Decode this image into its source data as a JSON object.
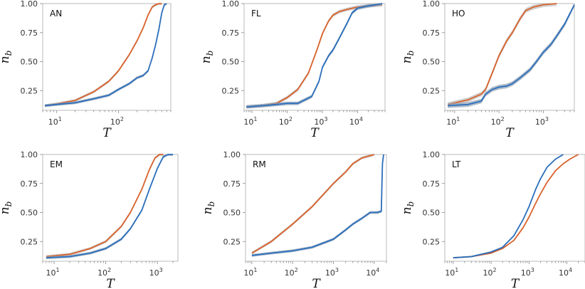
{
  "colors": {
    "orange": "#d9622b",
    "orange_band": "#bbbbbb",
    "blue": "#2a6ebb",
    "blue_band": "#8f9fb3"
  },
  "chart_data": [
    {
      "type": "line",
      "panel_label": "AN",
      "xlabel": "T",
      "ylabel": "n_b",
      "xscale": "log",
      "xlim": [
        6,
        700
      ],
      "ylim": [
        0.08,
        1.0
      ],
      "yticks": [
        0.25,
        0.5,
        0.75,
        1.0
      ],
      "ytick_labels": [
        "0.25",
        "0.50",
        "0.75",
        "1.00"
      ],
      "xticks": [
        10,
        100
      ],
      "xtick_base": [
        "10",
        "10"
      ],
      "xtick_exp": [
        "1",
        "2"
      ],
      "series": [
        {
          "color": "orange",
          "band": 0.012,
          "x": [
            6.5,
            10,
            20,
            40,
            70,
            100,
            150,
            200,
            250,
            300,
            350,
            400,
            450,
            500
          ],
          "y": [
            0.12,
            0.135,
            0.165,
            0.24,
            0.33,
            0.42,
            0.56,
            0.68,
            0.79,
            0.9,
            0.97,
            0.99,
            1.0,
            1.0
          ]
        },
        {
          "color": "blue",
          "band": 0.012,
          "x": [
            6.5,
            10,
            20,
            40,
            70,
            100,
            150,
            200,
            250,
            300,
            350,
            400,
            450,
            500,
            550,
            600
          ],
          "y": [
            0.12,
            0.13,
            0.145,
            0.18,
            0.21,
            0.26,
            0.31,
            0.36,
            0.38,
            0.42,
            0.53,
            0.65,
            0.78,
            0.92,
            0.99,
            1.0
          ]
        }
      ]
    },
    {
      "type": "line",
      "panel_label": "FL",
      "xlabel": "T",
      "ylabel": "n_b",
      "xscale": "log",
      "xlim": [
        6,
        60000
      ],
      "ylim": [
        0.08,
        1.0
      ],
      "yticks": [
        0.25,
        0.5,
        0.75,
        1.0
      ],
      "ytick_labels": [
        "0.25",
        "0.50",
        "0.75",
        "1.00"
      ],
      "xticks": [
        10,
        100,
        1000,
        10000
      ],
      "xtick_base": [
        "10",
        "10",
        "10",
        "10"
      ],
      "xtick_exp": [
        "1",
        "2",
        "3",
        "4"
      ],
      "series": [
        {
          "color": "orange",
          "band": 0.015,
          "x": [
            7,
            20,
            50,
            100,
            200,
            400,
            700,
            1000,
            1500,
            2000,
            3000,
            5000,
            10000,
            20000,
            50000
          ],
          "y": [
            0.11,
            0.12,
            0.14,
            0.19,
            0.26,
            0.4,
            0.6,
            0.74,
            0.85,
            0.9,
            0.93,
            0.95,
            0.97,
            0.98,
            0.99
          ]
        },
        {
          "color": "blue",
          "band": 0.015,
          "x": [
            7,
            20,
            50,
            100,
            200,
            500,
            800,
            1000,
            1500,
            2000,
            3000,
            5000,
            7000,
            10000,
            20000,
            50000
          ],
          "y": [
            0.11,
            0.12,
            0.13,
            0.14,
            0.14,
            0.2,
            0.33,
            0.45,
            0.55,
            0.6,
            0.7,
            0.83,
            0.92,
            0.96,
            0.98,
            1.0
          ]
        }
      ]
    },
    {
      "type": "line",
      "panel_label": "HO",
      "xlabel": "T",
      "ylabel": "n_b",
      "xscale": "log",
      "xlim": [
        6,
        5000
      ],
      "ylim": [
        0.08,
        1.0
      ],
      "yticks": [
        0.25,
        0.5,
        0.75,
        1.0
      ],
      "ytick_labels": [
        "0.25",
        "0.50",
        "0.75",
        "1.00"
      ],
      "xticks": [
        10,
        100,
        1000
      ],
      "xtick_base": [
        "10",
        "10",
        "10"
      ],
      "xtick_exp": [
        "1",
        "2",
        "3"
      ],
      "series": [
        {
          "color": "orange",
          "band": 0.02,
          "x": [
            7,
            20,
            40,
            50,
            70,
            100,
            150,
            200,
            300,
            400,
            600,
            1000,
            2000
          ],
          "y": [
            0.13,
            0.17,
            0.22,
            0.26,
            0.4,
            0.55,
            0.68,
            0.75,
            0.87,
            0.94,
            0.97,
            0.99,
            1.0
          ]
        },
        {
          "color": "blue",
          "band": 0.02,
          "x": [
            7,
            20,
            40,
            50,
            70,
            100,
            150,
            200,
            300,
            500,
            700,
            1000,
            1500,
            2000,
            3000,
            5000
          ],
          "y": [
            0.12,
            0.13,
            0.16,
            0.22,
            0.26,
            0.28,
            0.29,
            0.31,
            0.36,
            0.43,
            0.5,
            0.58,
            0.65,
            0.72,
            0.82,
            0.99
          ]
        }
      ]
    },
    {
      "type": "line",
      "panel_label": "EM",
      "xlabel": "T",
      "ylabel": "n_b",
      "xscale": "log",
      "xlim": [
        6,
        2500
      ],
      "ylim": [
        0.08,
        1.0
      ],
      "yticks": [
        0.25,
        0.5,
        0.75,
        1.0
      ],
      "ytick_labels": [
        "0.25",
        "0.50",
        "0.75",
        "1.00"
      ],
      "xticks": [
        10,
        100,
        1000
      ],
      "xtick_base": [
        "10",
        "10",
        "10"
      ],
      "xtick_exp": [
        "1",
        "2",
        "3"
      ],
      "series": [
        {
          "color": "orange",
          "band": 0.012,
          "x": [
            7,
            20,
            50,
            100,
            200,
            300,
            500,
            700,
            900,
            1100,
            1300
          ],
          "y": [
            0.12,
            0.14,
            0.19,
            0.25,
            0.38,
            0.5,
            0.7,
            0.87,
            0.97,
            1.0,
            1.0
          ]
        },
        {
          "color": "blue",
          "band": 0.012,
          "x": [
            7,
            20,
            50,
            100,
            200,
            300,
            500,
            700,
            1000,
            1300,
            1600,
            2000
          ],
          "y": [
            0.11,
            0.12,
            0.15,
            0.19,
            0.27,
            0.36,
            0.52,
            0.7,
            0.88,
            0.98,
            1.0,
            1.0
          ]
        }
      ]
    },
    {
      "type": "line",
      "panel_label": "RM",
      "xlabel": "T",
      "ylabel": "n_b",
      "xscale": "log",
      "xlim": [
        7,
        20000
      ],
      "ylim": [
        0.08,
        1.0
      ],
      "yticks": [
        0.25,
        0.5,
        0.75,
        1.0
      ],
      "ytick_labels": [
        "0.25",
        "0.50",
        "0.75",
        "1.00"
      ],
      "xticks": [
        10,
        100,
        1000,
        10000
      ],
      "xtick_base": [
        "10",
        "10",
        "10",
        "10"
      ],
      "xtick_exp": [
        "1",
        "2",
        "3",
        "4"
      ],
      "series": [
        {
          "color": "orange",
          "band": 0.012,
          "x": [
            10,
            30,
            100,
            300,
            1000,
            2000,
            3000,
            5000,
            8000,
            10000
          ],
          "y": [
            0.15,
            0.25,
            0.4,
            0.55,
            0.75,
            0.85,
            0.92,
            0.97,
            0.99,
            1.0
          ]
        },
        {
          "color": "blue",
          "band": 0.012,
          "x": [
            10,
            30,
            100,
            300,
            1000,
            2000,
            3000,
            5000,
            8000,
            12000,
            15000,
            15500,
            16000,
            17000
          ],
          "y": [
            0.13,
            0.15,
            0.17,
            0.2,
            0.27,
            0.35,
            0.4,
            0.45,
            0.5,
            0.5,
            0.51,
            0.75,
            0.92,
            1.0
          ]
        }
      ]
    },
    {
      "type": "line",
      "panel_label": "LT",
      "xlabel": "T",
      "ylabel": "n_b",
      "xscale": "log",
      "xlim": [
        6,
        30000
      ],
      "ylim": [
        0.08,
        1.0
      ],
      "yticks": [
        0.25,
        0.5,
        0.75,
        1.0
      ],
      "ytick_labels": [
        "0.25",
        "0.50",
        "0.75",
        "1.00"
      ],
      "xticks": [
        10,
        100,
        1000,
        10000
      ],
      "xtick_base": [
        "10",
        "10",
        "10",
        "10"
      ],
      "xtick_exp": [
        "1",
        "2",
        "3",
        "4"
      ],
      "series": [
        {
          "color": "orange",
          "band": 0.006,
          "x": [
            10,
            30,
            100,
            200,
            400,
            700,
            1000,
            1500,
            2000,
            3000,
            5000,
            8000,
            12000,
            20000
          ],
          "y": [
            0.11,
            0.12,
            0.15,
            0.19,
            0.26,
            0.37,
            0.46,
            0.58,
            0.66,
            0.76,
            0.86,
            0.92,
            0.96,
            1.0
          ]
        },
        {
          "color": "blue",
          "band": 0.006,
          "x": [
            10,
            30,
            100,
            200,
            400,
            700,
            1000,
            1500,
            2000,
            3000,
            5000,
            8000
          ],
          "y": [
            0.11,
            0.12,
            0.16,
            0.2,
            0.3,
            0.44,
            0.55,
            0.7,
            0.79,
            0.89,
            0.96,
            1.0
          ]
        }
      ]
    }
  ]
}
